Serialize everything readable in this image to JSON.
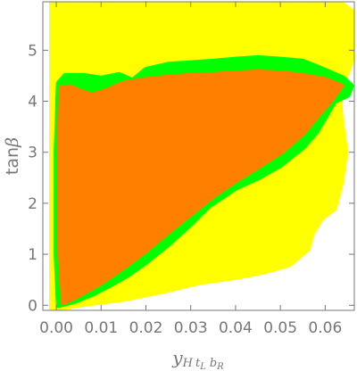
{
  "chart_data": {
    "type": "region",
    "title": "",
    "xlabel": "y_H t_L b_R",
    "xlabel_main": "y",
    "xlabel_sub1": "H",
    "xlabel_sub2": "t",
    "xlabel_sub2_sub": "L",
    "xlabel_sub3": "b",
    "xlabel_sub3_sub": "R",
    "ylabel": "tanβ",
    "ylabel_prefix": "tan",
    "ylabel_symbol": "β",
    "xlim": [
      -0.003,
      0.0665
    ],
    "ylim": [
      -0.1,
      5.95
    ],
    "xticks": [
      0.0,
      0.01,
      0.02,
      0.03,
      0.04,
      0.05,
      0.06
    ],
    "xtick_labels": [
      "0.00",
      "0.01",
      "0.02",
      "0.03",
      "0.04",
      "0.05",
      "0.06"
    ],
    "yticks": [
      0,
      1,
      2,
      3,
      4,
      5
    ],
    "ytick_labels": [
      "0",
      "1",
      "2",
      "3",
      "4",
      "5"
    ],
    "colors": {
      "yellow": "#ffff00",
      "green": "#00ff00",
      "orange": "#ff8000",
      "frame": "#777777"
    },
    "regions": [
      {
        "color": "#ffff00",
        "polygon": [
          [
            -0.001,
            -0.07
          ],
          [
            -0.001,
            5.95
          ],
          [
            0.063,
            5.95
          ],
          [
            0.066,
            5.75
          ],
          [
            0.0665,
            5.0
          ],
          [
            0.065,
            4.6
          ],
          [
            0.063,
            4.15
          ],
          [
            0.0635,
            3.65
          ],
          [
            0.0645,
            3.0
          ],
          [
            0.0635,
            2.4
          ],
          [
            0.062,
            1.9
          ],
          [
            0.059,
            1.7
          ],
          [
            0.057,
            1.4
          ],
          [
            0.056,
            1.1
          ],
          [
            0.052,
            0.8
          ],
          [
            0.046,
            0.65
          ],
          [
            0.04,
            0.55
          ],
          [
            0.032,
            0.45
          ],
          [
            0.025,
            0.3
          ],
          [
            0.015,
            0.12
          ],
          [
            0.006,
            0.02
          ],
          [
            0.002,
            -0.04
          ]
        ]
      },
      {
        "color": "#00ff00",
        "polygon": [
          [
            0.0005,
            4.35
          ],
          [
            0.002,
            4.5
          ],
          [
            0.006,
            4.5
          ],
          [
            0.01,
            4.45
          ],
          [
            0.014,
            4.52
          ],
          [
            0.017,
            4.4
          ],
          [
            0.02,
            4.62
          ],
          [
            0.025,
            4.72
          ],
          [
            0.03,
            4.75
          ],
          [
            0.035,
            4.78
          ],
          [
            0.04,
            4.82
          ],
          [
            0.045,
            4.85
          ],
          [
            0.05,
            4.82
          ],
          [
            0.055,
            4.78
          ],
          [
            0.06,
            4.6
          ],
          [
            0.064,
            4.45
          ],
          [
            0.0658,
            4.3
          ],
          [
            0.065,
            4.12
          ],
          [
            0.062,
            4.0
          ],
          [
            0.06,
            3.7
          ],
          [
            0.058,
            3.4
          ],
          [
            0.055,
            3.1
          ],
          [
            0.05,
            2.75
          ],
          [
            0.045,
            2.5
          ],
          [
            0.04,
            2.3
          ],
          [
            0.034,
            1.95
          ],
          [
            0.03,
            1.6
          ],
          [
            0.025,
            1.2
          ],
          [
            0.02,
            0.85
          ],
          [
            0.016,
            0.6
          ],
          [
            0.012,
            0.4
          ],
          [
            0.008,
            0.22
          ],
          [
            0.004,
            0.08
          ],
          [
            0.0005,
            0.0
          ],
          [
            0.0,
            1.0
          ],
          [
            0.0,
            3.0
          ]
        ]
      },
      {
        "color": "#ff8000",
        "polygon": [
          [
            0.001,
            4.25
          ],
          [
            0.003,
            4.28
          ],
          [
            0.005,
            4.2
          ],
          [
            0.008,
            4.12
          ],
          [
            0.011,
            4.2
          ],
          [
            0.015,
            4.35
          ],
          [
            0.02,
            4.42
          ],
          [
            0.025,
            4.47
          ],
          [
            0.03,
            4.5
          ],
          [
            0.035,
            4.52
          ],
          [
            0.04,
            4.55
          ],
          [
            0.045,
            4.57
          ],
          [
            0.05,
            4.55
          ],
          [
            0.055,
            4.5
          ],
          [
            0.06,
            4.42
          ],
          [
            0.0635,
            4.3
          ],
          [
            0.061,
            4.0
          ],
          [
            0.058,
            3.7
          ],
          [
            0.055,
            3.38
          ],
          [
            0.05,
            3.0
          ],
          [
            0.045,
            2.72
          ],
          [
            0.04,
            2.45
          ],
          [
            0.035,
            2.15
          ],
          [
            0.03,
            1.8
          ],
          [
            0.025,
            1.45
          ],
          [
            0.02,
            1.08
          ],
          [
            0.015,
            0.75
          ],
          [
            0.01,
            0.45
          ],
          [
            0.005,
            0.2
          ],
          [
            0.0015,
            0.05
          ],
          [
            0.0008,
            1.0
          ],
          [
            0.0006,
            3.0
          ]
        ]
      }
    ]
  }
}
